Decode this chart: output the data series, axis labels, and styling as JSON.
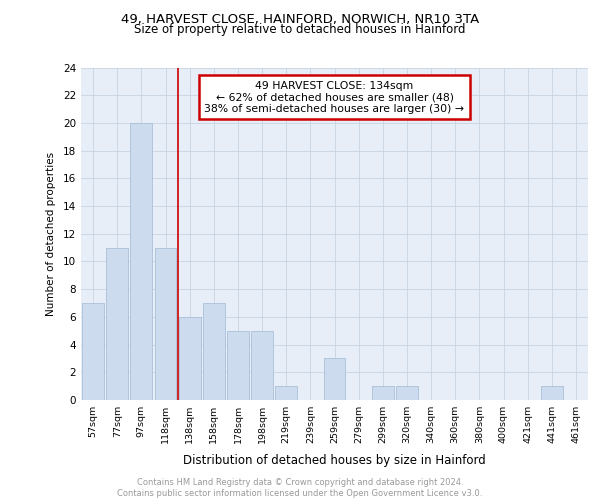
{
  "title1": "49, HARVEST CLOSE, HAINFORD, NORWICH, NR10 3TA",
  "title2": "Size of property relative to detached houses in Hainford",
  "xlabel": "Distribution of detached houses by size in Hainford",
  "ylabel": "Number of detached properties",
  "categories": [
    "57sqm",
    "77sqm",
    "97sqm",
    "118sqm",
    "138sqm",
    "158sqm",
    "178sqm",
    "198sqm",
    "219sqm",
    "239sqm",
    "259sqm",
    "279sqm",
    "299sqm",
    "320sqm",
    "340sqm",
    "360sqm",
    "380sqm",
    "400sqm",
    "421sqm",
    "441sqm",
    "461sqm"
  ],
  "values": [
    7,
    11,
    20,
    11,
    6,
    7,
    5,
    5,
    1,
    0,
    3,
    0,
    1,
    1,
    0,
    0,
    0,
    0,
    0,
    1,
    0
  ],
  "bar_color": "#ccdcee",
  "bar_edge_color": "#aac0da",
  "grid_color": "#c8d4e4",
  "vline_x": 3.5,
  "vline_color": "#cc0000",
  "annotation_text": "49 HARVEST CLOSE: 134sqm\n← 62% of detached houses are smaller (48)\n38% of semi-detached houses are larger (30) →",
  "annotation_box_color": "#ffffff",
  "annotation_box_edge": "#cc0000",
  "footer_text": "Contains HM Land Registry data © Crown copyright and database right 2024.\nContains public sector information licensed under the Open Government Licence v3.0.",
  "ylim": [
    0,
    24
  ],
  "yticks": [
    0,
    2,
    4,
    6,
    8,
    10,
    12,
    14,
    16,
    18,
    20,
    22,
    24
  ],
  "bg_color": "#e8eef8"
}
